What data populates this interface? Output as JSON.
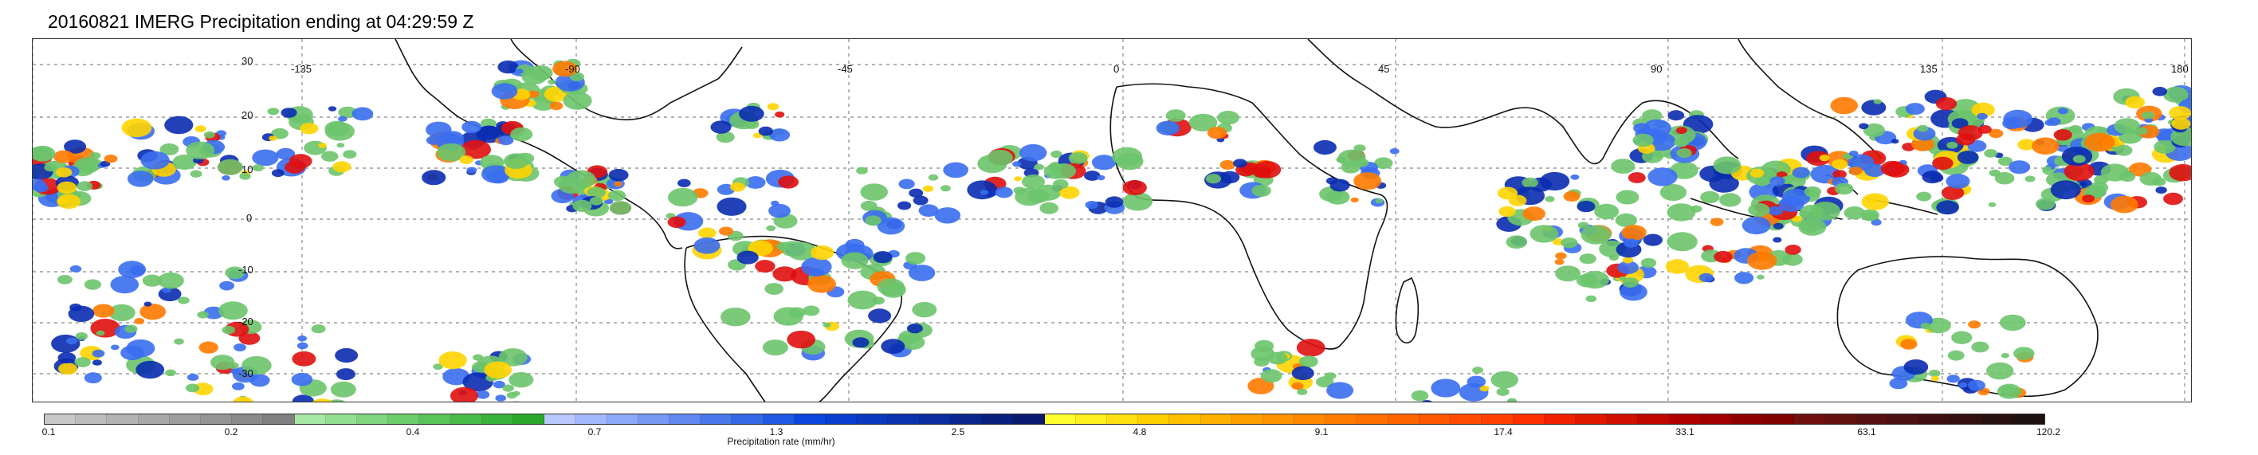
{
  "title": "20160821 IMERG Precipitation ending at 04:29:59 Z",
  "map": {
    "lat_labels": [
      "30",
      "20",
      "10",
      "0",
      "-10",
      "-20",
      "-30"
    ],
    "lon_labels": [
      "-135",
      "-90",
      "-45",
      "0",
      "45",
      "90",
      "135",
      "180"
    ]
  },
  "colorbar": {
    "title": "Precipitation rate (mm/hr)",
    "ticks": [
      "0.1",
      "0.2",
      "0.4",
      "0.7",
      "1.3",
      "2.5",
      "4.8",
      "9.1",
      "17.4",
      "33.1",
      "63.1",
      "120.2"
    ],
    "colors": [
      "#c8c8c8",
      "#bdbdbd",
      "#b3b3b3",
      "#a8a8a8",
      "#9e9e9e",
      "#949494",
      "#8a8a8a",
      "#808080",
      "#a6e8a6",
      "#92df92",
      "#7fd67f",
      "#6ccd6c",
      "#5ac45a",
      "#48bb48",
      "#38b238",
      "#2aa82a",
      "#b8c8ff",
      "#a2b8fb",
      "#8ca8f7",
      "#7698f3",
      "#6088ef",
      "#4a78eb",
      "#3468e7",
      "#1e58e3",
      "#0a46df",
      "#0a3fcf",
      "#0a38bf",
      "#0a32af",
      "#0a2c9f",
      "#0a268f",
      "#0a207f",
      "#0a1a70",
      "#ffff30",
      "#fff020",
      "#ffe010",
      "#ffd000",
      "#ffc000",
      "#ffb000",
      "#ffa000",
      "#ff9400",
      "#ff8800",
      "#ff7c00",
      "#ff7000",
      "#ff6400",
      "#ff5800",
      "#ff4c00",
      "#ff4000",
      "#ff3000",
      "#f02000",
      "#e01800",
      "#d01000",
      "#c00800",
      "#b00000",
      "#a00000",
      "#900000",
      "#800000",
      "#701010",
      "#641010",
      "#581010",
      "#4c1010",
      "#401010",
      "#341010",
      "#281010",
      "#1c1010"
    ]
  },
  "precip_colors": [
    "#6cc46c",
    "#3a6ef0",
    "#0a2cb0",
    "#ffd400",
    "#ff7a00",
    "#e01010"
  ]
}
